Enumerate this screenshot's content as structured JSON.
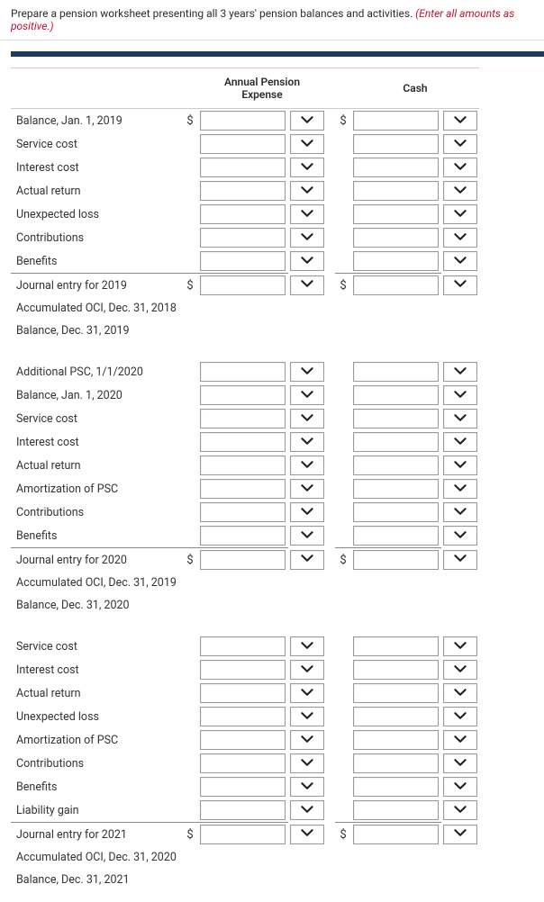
{
  "instruction_main": "Prepare a pension worksheet presenting all 3 years' pension balances and activities. ",
  "instruction_note": "(Enter all amounts as positive.)",
  "columns": {
    "ape_line1": "Annual Pension",
    "ape_line2": "Expense",
    "cash": "Cash"
  },
  "rows": [
    {
      "label": "Balance, Jan. 1, 2019",
      "ape_cur": "$",
      "ape_input": true,
      "ape_drop": true,
      "cash_cur": "$",
      "cash_input": true,
      "cash_drop": true
    },
    {
      "label": "Service cost",
      "ape_input": true,
      "ape_drop": true,
      "cash_input": true,
      "cash_drop": true
    },
    {
      "label": "Interest cost",
      "ape_input": true,
      "ape_drop": true,
      "cash_input": true,
      "cash_drop": true
    },
    {
      "label": "Actual return",
      "ape_input": true,
      "ape_drop": true,
      "cash_input": true,
      "cash_drop": true
    },
    {
      "label": "Unexpected loss",
      "ape_input": true,
      "ape_drop": true,
      "cash_input": true,
      "cash_drop": true
    },
    {
      "label": "Contributions",
      "ape_input": true,
      "ape_drop": true,
      "cash_input": true,
      "cash_drop": true
    },
    {
      "label": "Benefits",
      "ape_input": true,
      "ape_drop": true,
      "cash_input": true,
      "cash_drop": true
    },
    {
      "label": "Journal entry for 2019",
      "total": true,
      "ape_cur": "$",
      "ape_input": true,
      "ape_drop": true,
      "cash_cur": "$",
      "cash_input": true,
      "cash_drop": true
    },
    {
      "label": "Accumulated OCI, Dec. 31, 2018"
    },
    {
      "label": "Balance, Dec. 31, 2019"
    },
    {
      "spacer": true
    },
    {
      "label": "Additional PSC, 1/1/2020",
      "ape_input": true,
      "ape_drop": true,
      "cash_input": true,
      "cash_drop": true
    },
    {
      "label": "Balance, Jan. 1, 2020",
      "ape_input": true,
      "ape_drop": true,
      "cash_input": true,
      "cash_drop": true
    },
    {
      "label": "Service cost",
      "ape_input": true,
      "ape_drop": true,
      "cash_input": true,
      "cash_drop": true
    },
    {
      "label": "Interest cost",
      "ape_input": true,
      "ape_drop": true,
      "cash_input": true,
      "cash_drop": true
    },
    {
      "label": "Actual return",
      "ape_input": true,
      "ape_drop": true,
      "cash_input": true,
      "cash_drop": true
    },
    {
      "label": "Amortization of PSC",
      "ape_input": true,
      "ape_drop": true,
      "cash_input": true,
      "cash_drop": true
    },
    {
      "label": "Contributions",
      "ape_input": true,
      "ape_drop": true,
      "cash_input": true,
      "cash_drop": true
    },
    {
      "label": "Benefits",
      "ape_input": true,
      "ape_drop": true,
      "cash_input": true,
      "cash_drop": true
    },
    {
      "label": "Journal entry for 2020",
      "total": true,
      "ape_cur": "$",
      "ape_input": true,
      "ape_drop": true,
      "cash_cur": "$",
      "cash_input": true,
      "cash_drop": true
    },
    {
      "label": "Accumulated OCI, Dec. 31, 2019"
    },
    {
      "label": "Balance, Dec. 31, 2020"
    },
    {
      "spacer": true
    },
    {
      "label": "Service cost",
      "ape_input": true,
      "ape_drop": true,
      "cash_input": true,
      "cash_drop": true
    },
    {
      "label": "Interest cost",
      "ape_input": true,
      "ape_drop": true,
      "cash_input": true,
      "cash_drop": true
    },
    {
      "label": "Actual return",
      "ape_input": true,
      "ape_drop": true,
      "cash_input": true,
      "cash_drop": true
    },
    {
      "label": "Unexpected loss",
      "ape_input": true,
      "ape_drop": true,
      "cash_input": true,
      "cash_drop": true
    },
    {
      "label": "Amortization of PSC",
      "ape_input": true,
      "ape_drop": true,
      "cash_input": true,
      "cash_drop": true
    },
    {
      "label": "Contributions",
      "ape_input": true,
      "ape_drop": true,
      "cash_input": true,
      "cash_drop": true
    },
    {
      "label": "Benefits",
      "ape_input": true,
      "ape_drop": true,
      "cash_input": true,
      "cash_drop": true
    },
    {
      "label": "Liability gain",
      "ape_input": true,
      "ape_drop": true,
      "cash_input": true,
      "cash_drop": true
    },
    {
      "label": "Journal entry for 2021",
      "total": true,
      "ape_cur": "$",
      "ape_input": true,
      "ape_drop": true,
      "cash_cur": "$",
      "cash_input": true,
      "cash_drop": true
    },
    {
      "label": "Accumulated OCI, Dec. 31, 2020"
    },
    {
      "label": "Balance, Dec. 31, 2021"
    }
  ]
}
